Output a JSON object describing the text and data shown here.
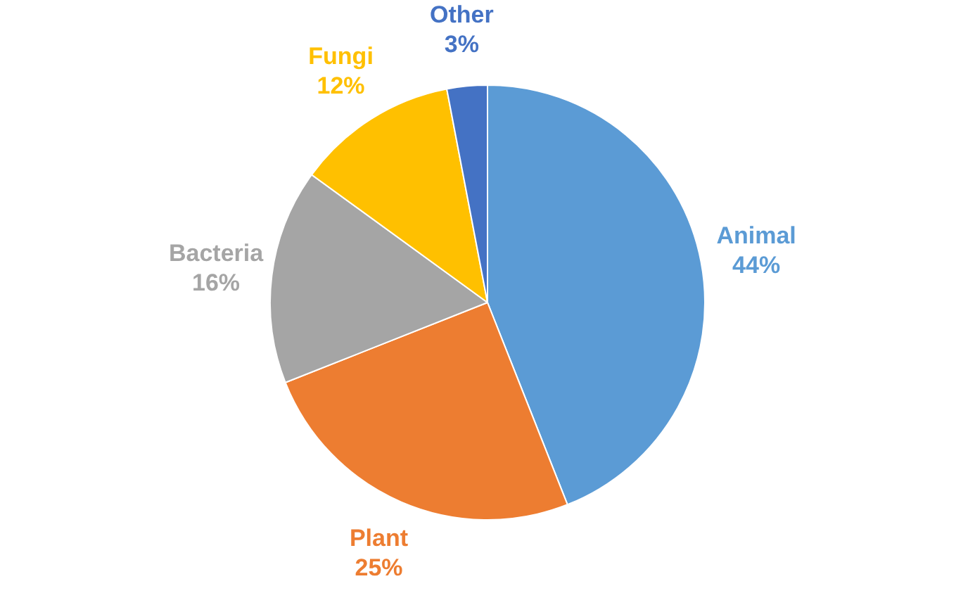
{
  "chart_data": {
    "type": "pie",
    "categories": [
      "Animal",
      "Plant",
      "Bacteria",
      "Fungi",
      "Other"
    ],
    "values": [
      44,
      25,
      16,
      12,
      3
    ],
    "colors": [
      "#5b9bd5",
      "#ed7d31",
      "#a5a5a5",
      "#ffc000",
      "#4472c4"
    ],
    "value_labels": [
      "44%",
      "25%",
      "16%",
      "12%",
      "3%"
    ],
    "legend": false
  }
}
